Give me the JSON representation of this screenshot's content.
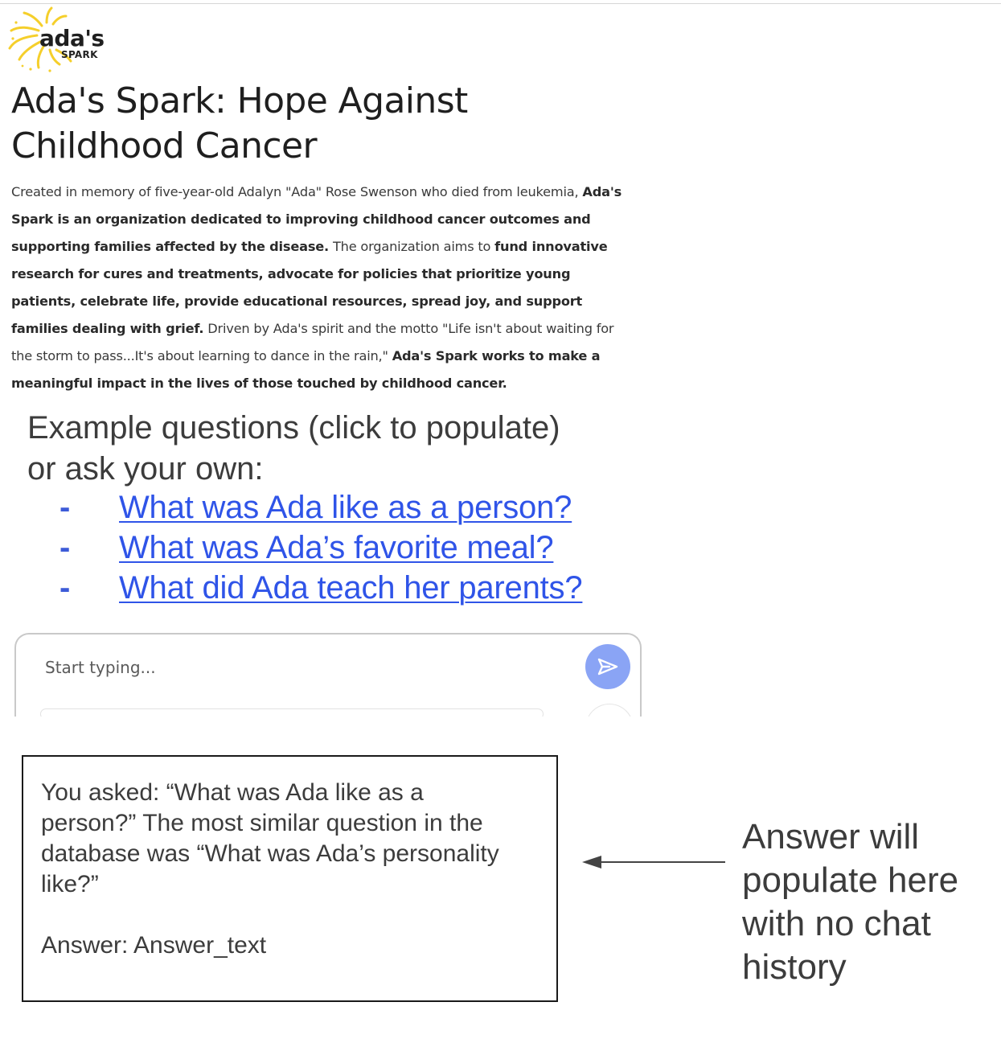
{
  "logo": {
    "wordmark": "ada's",
    "subtext": "SPARK",
    "sun_color": "#f5cf2b"
  },
  "page": {
    "title": "Ada's Spark: Hope Against Childhood Cancer"
  },
  "description": {
    "p1": "Created in memory of five-year-old Adalyn \"Ada\" Rose Swenson who died from leukemia, ",
    "b1": "Ada's Spark is an organization dedicated to improving childhood cancer outcomes and supporting families affected by the disease.",
    "p2": " The organization aims to ",
    "b2": "fund innovative research for cures and treatments, advocate for policies that prioritize young patients, celebrate life, provide educational resources, spread joy, and support families dealing with grief.",
    "p3": " Driven by Ada's spirit and the motto \"Life isn't about waiting for the storm to pass...It's about learning to dance in the rain,\" ",
    "b3": "Ada's Spark works to make a meaningful impact in the lives of those touched by childhood cancer."
  },
  "examples": {
    "heading_line1": "Example questions (click to populate)",
    "heading_line2": "or ask your own:",
    "bullet": "-",
    "questions": [
      "What was Ada like as a person?",
      "What was Ada’s favorite meal?",
      "What did Ada teach her parents?"
    ],
    "link_color": "#2f54e8"
  },
  "chat": {
    "placeholder": "Start typing...",
    "send_icon": "send-icon",
    "send_color": "#8aa4f5"
  },
  "answer": {
    "line1": "You asked: “What was Ada like as a",
    "line2": "person?” The most similar question in the",
    "line3": "database was “What was Ada’s personality",
    "line4": "like?”",
    "line5": "Answer: Answer_text"
  },
  "annotation": {
    "line1": "Answer will",
    "line2": "populate here",
    "line3": "with no chat",
    "line4": "history"
  }
}
